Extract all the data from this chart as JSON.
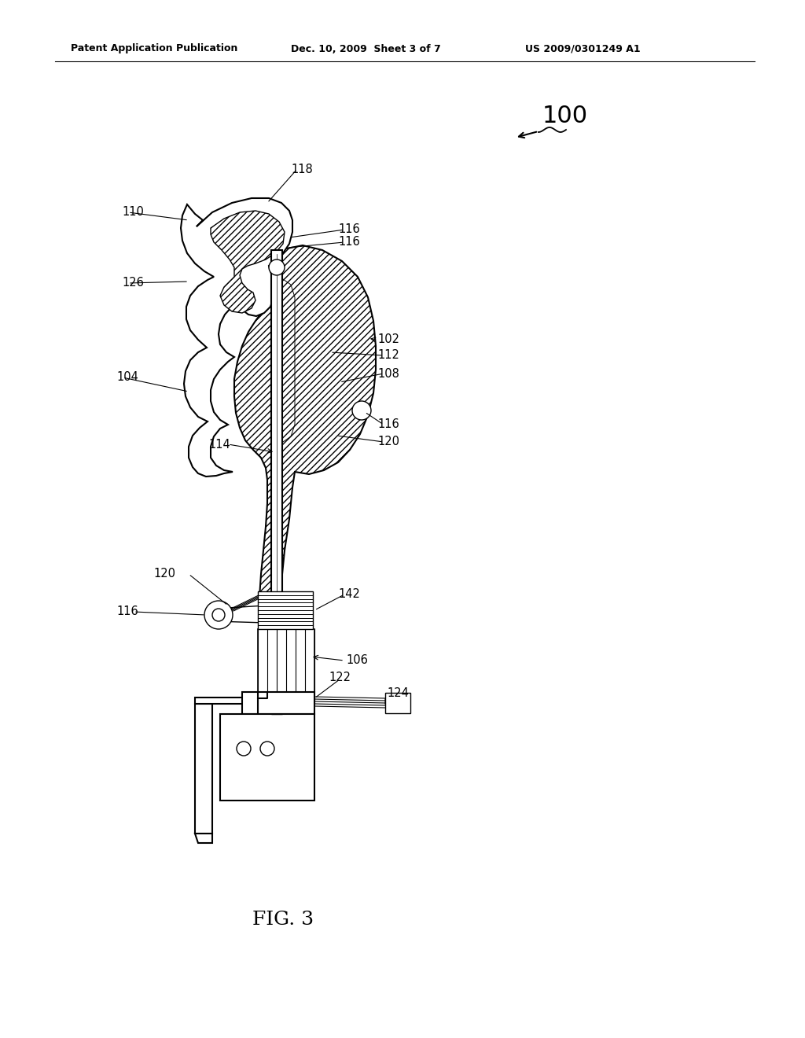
{
  "patent_header_left": "Patent Application Publication",
  "patent_header_mid": "Dec. 10, 2009  Sheet 3 of 7",
  "patent_header_right": "US 2009/0301249 A1",
  "fig_label": "FIG. 3",
  "bg_color": "#ffffff",
  "text_color": "#000000",
  "header_fontsize": 9.0,
  "label_fontsize": 10.5
}
